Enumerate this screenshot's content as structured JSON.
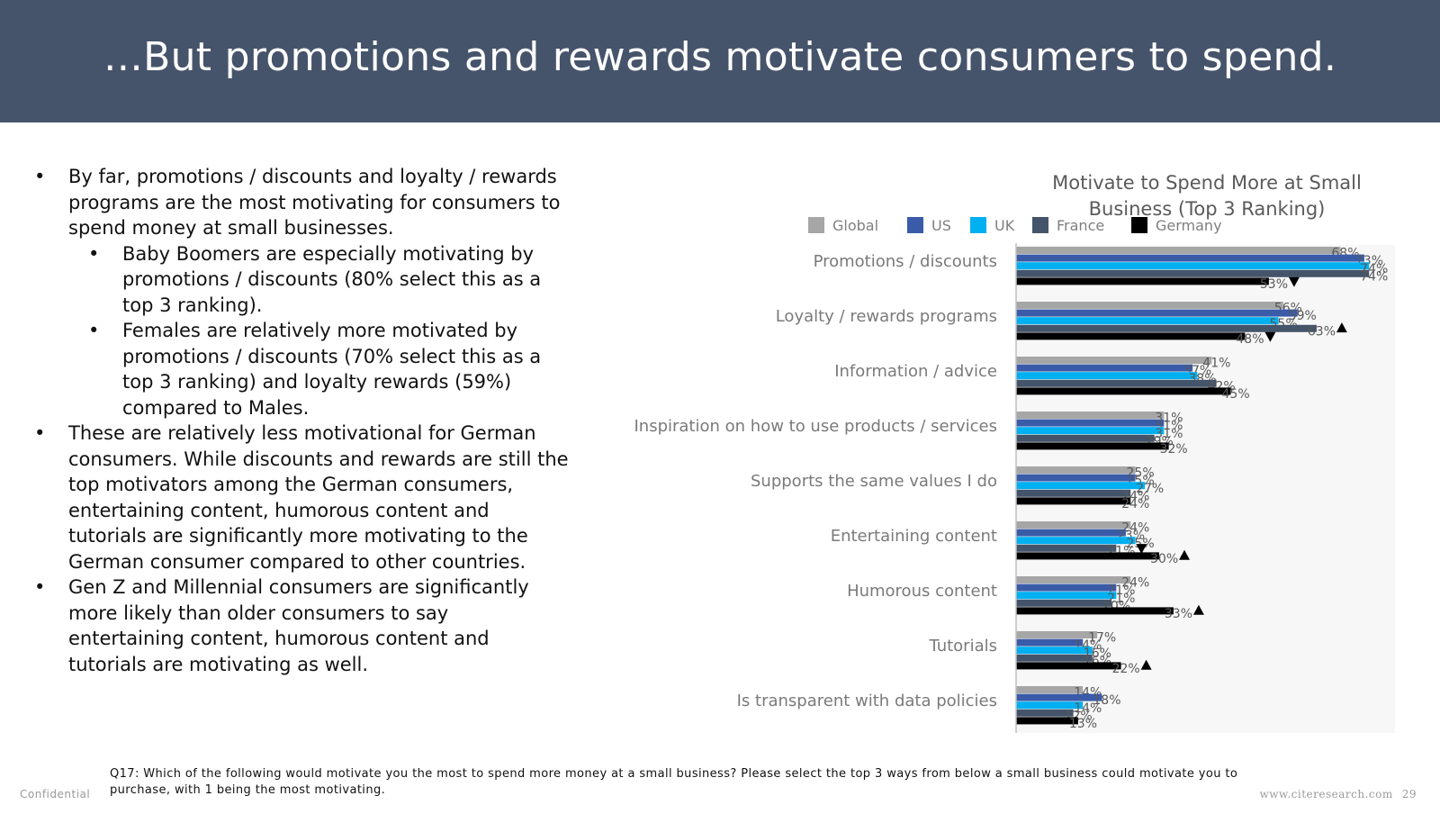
{
  "slide": {
    "title": "…But promotions and rewards motivate consumers to spend.",
    "footer_left": "Confidential",
    "footer_site": "www.citeresearch.com",
    "page_number": "29",
    "question": "Q17: Which of the following would motivate you the most to spend more money at a small business? Please select the top 3 ways from below a small business could motivate you to purchase, with 1 being the most motivating."
  },
  "bullets": {
    "b1": "By far, promotions / discounts and loyalty / rewards programs are the most motivating for consumers to spend money at small businesses.",
    "b1_sub1": "Baby Boomers are especially motivating by promotions / discounts (80% select this as a top 3 ranking).",
    "b1_sub2": "Females are relatively more motivated by promotions / discounts (70% select this as a top 3 ranking) and loyalty rewards (59%) compared to Males.",
    "b2": "These are relatively less motivational for German consumers.  While discounts and rewards are still the top motivators among the German consumers, entertaining content, humorous content and tutorials are significantly more motivating to the German consumer compared to other countries.",
    "b3": "Gen Z and Millennial consumers are significantly more likely than older consumers to say entertaining content, humorous content and tutorials are motivating as well."
  },
  "chart_data": {
    "type": "bar",
    "orientation": "horizontal",
    "title": "Motivate to Spend More at Small Business (Top 3 Ranking)",
    "title_lines": [
      "Motivate to Spend More at Small",
      "Business (Top 3 Ranking)"
    ],
    "categories": [
      "Promotions / discounts",
      "Loyalty / rewards programs",
      "Information / advice",
      "Inspiration on how to use products / services",
      "Supports the same values I do",
      "Entertaining content",
      "Humorous content",
      "Tutorials",
      "Is transparent with data policies"
    ],
    "series": [
      {
        "name": "Global",
        "color": "#a6a6a6",
        "values": [
          68,
          56,
          41,
          31,
          25,
          24,
          24,
          17,
          14
        ]
      },
      {
        "name": "US",
        "color": "#3a5ba8",
        "values": [
          73,
          59,
          37,
          31,
          25,
          23,
          21,
          14,
          18
        ]
      },
      {
        "name": "UK",
        "color": "#00b0f0",
        "values": [
          74,
          55,
          38,
          31,
          27,
          25,
          21,
          16,
          14
        ]
      },
      {
        "name": "France",
        "color": "#44546a",
        "values": [
          74,
          63,
          42,
          29,
          24,
          21,
          20,
          16,
          12
        ]
      },
      {
        "name": "Germany",
        "color": "#000000",
        "values": [
          53,
          48,
          45,
          32,
          24,
          30,
          33,
          22,
          13
        ]
      }
    ],
    "value_suffix": "%",
    "xlim": [
      0,
      80
    ],
    "legend_position": "top",
    "significance_markers": [
      {
        "category": 0,
        "series": 4,
        "direction": "down"
      },
      {
        "category": 1,
        "series": 4,
        "direction": "down"
      },
      {
        "category": 1,
        "series": 3,
        "direction": "up"
      },
      {
        "category": 5,
        "series": 3,
        "direction": "down"
      },
      {
        "category": 5,
        "series": 4,
        "direction": "up"
      },
      {
        "category": 6,
        "series": 4,
        "direction": "up"
      },
      {
        "category": 7,
        "series": 4,
        "direction": "up"
      }
    ]
  }
}
